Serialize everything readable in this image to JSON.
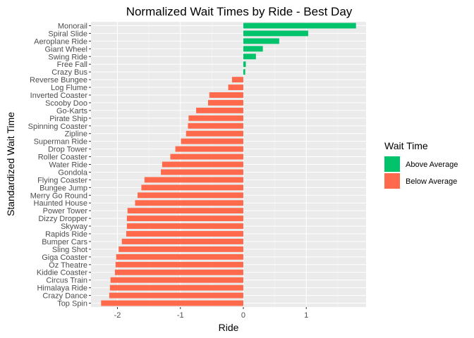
{
  "chart_data": {
    "type": "bar",
    "orientation": "horizontal",
    "title": "Normalized Wait Times by Ride - Best Day",
    "xlabel": "Ride",
    "ylabel": "Standardized Wait Time",
    "xlim": [
      -2.42,
      1.95
    ],
    "x_ticks": [
      -2,
      -1,
      0,
      1
    ],
    "x_tick_labels": [
      "-2",
      "-1",
      "0",
      "1"
    ],
    "grid": true,
    "legend_position": "right",
    "legend": {
      "title": "Wait Time",
      "entries": [
        {
          "label": "Above Average",
          "color": "#00c36b"
        },
        {
          "label": "Below Average",
          "color": "#ff6a4d"
        }
      ]
    },
    "categories": [
      "Monorail",
      "Spiral Slide",
      "Aeroplane Ride",
      "Giant Wheel",
      "Swing Ride",
      "Free Fall",
      "Crazy Bus",
      "Reverse Bungee",
      "Log Flume",
      "Inverted Coaster",
      "Scooby Doo",
      "Go-Karts",
      "Pirate Ship",
      "Spinning Coaster",
      "Zipline",
      "Superman Ride",
      "Drop Tower",
      "Roller Coaster",
      "Water Ride",
      "Gondola",
      "Flying Coaster",
      "Bungee Jump",
      "Merry Go Round",
      "Haunted House",
      "Power Tower",
      "Dizzy Dropper",
      "Skyway",
      "Rapids Ride",
      "Bumper Cars",
      "Sling Shot",
      "Giga Coaster",
      "Oz Theatre",
      "Kiddie Coaster",
      "Circus Train",
      "Himalaya Ride",
      "Crazy Dance",
      "Top Spin"
    ],
    "values": [
      1.79,
      1.03,
      0.57,
      0.31,
      0.2,
      0.04,
      0.03,
      -0.18,
      -0.24,
      -0.54,
      -0.56,
      -0.75,
      -0.87,
      -0.88,
      -0.91,
      -0.99,
      -1.08,
      -1.16,
      -1.29,
      -1.31,
      -1.57,
      -1.62,
      -1.68,
      -1.72,
      -1.84,
      -1.85,
      -1.85,
      -1.86,
      -1.93,
      -1.98,
      -2.02,
      -2.03,
      -2.04,
      -2.11,
      -2.12,
      -2.13,
      -2.26
    ],
    "groups": [
      "Above Average",
      "Above Average",
      "Above Average",
      "Above Average",
      "Above Average",
      "Above Average",
      "Above Average",
      "Below Average",
      "Below Average",
      "Below Average",
      "Below Average",
      "Below Average",
      "Below Average",
      "Below Average",
      "Below Average",
      "Below Average",
      "Below Average",
      "Below Average",
      "Below Average",
      "Below Average",
      "Below Average",
      "Below Average",
      "Below Average",
      "Below Average",
      "Below Average",
      "Below Average",
      "Below Average",
      "Below Average",
      "Below Average",
      "Below Average",
      "Below Average",
      "Below Average",
      "Below Average",
      "Below Average",
      "Below Average",
      "Below Average",
      "Below Average"
    ]
  },
  "colors": {
    "panel_background": "#ebebeb",
    "major_grid": "#ffffff",
    "minor_grid": "#f5f5f5",
    "above": "#00c36b",
    "below": "#ff6a4d"
  }
}
